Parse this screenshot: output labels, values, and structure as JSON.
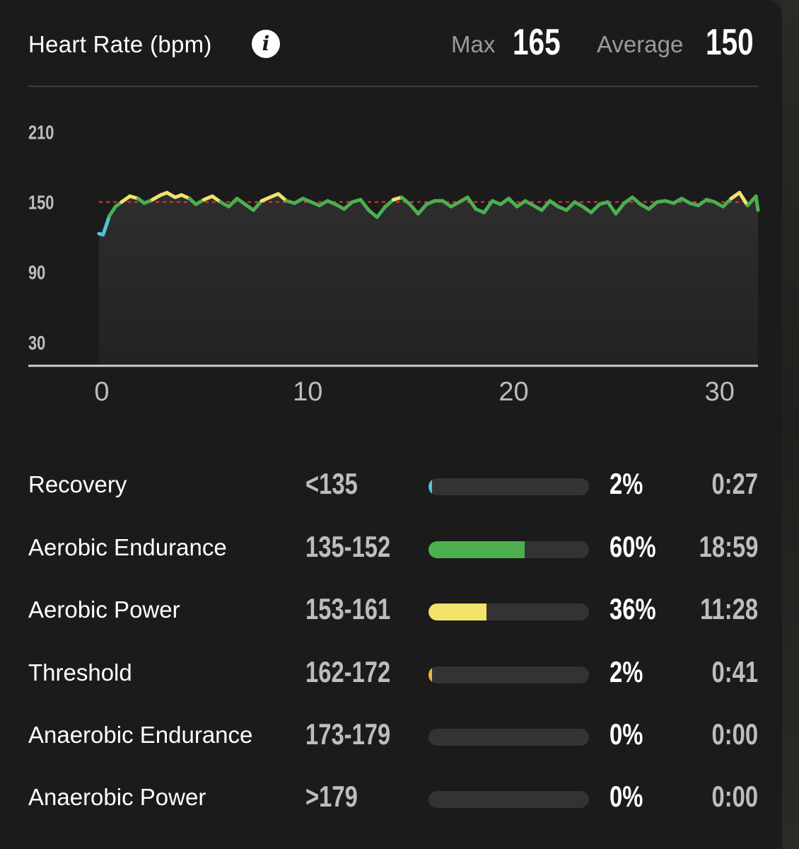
{
  "header": {
    "title": "Heart Rate (bpm)",
    "info_icon": "info-icon",
    "max_label": "Max",
    "max_value": "165",
    "average_label": "Average",
    "average_value": "150"
  },
  "colors": {
    "recovery": "#4fc3d9",
    "aerobic_endurance": "#4caf50",
    "aerobic_power": "#f2e36b",
    "threshold": "#f0b13a",
    "average_line": "#e53935"
  },
  "chart_data": {
    "type": "line",
    "title": "Heart Rate (bpm)",
    "xlabel": "",
    "ylabel": "",
    "xlim": [
      0,
      32
    ],
    "ylim": [
      10,
      235
    ],
    "yticks": [
      30,
      90,
      150,
      210
    ],
    "xticks": [
      0,
      10,
      20,
      30
    ],
    "average": 150,
    "series": [
      {
        "values": [
          [
            0.0,
            123
          ],
          [
            0.2,
            122
          ],
          [
            0.5,
            138
          ],
          [
            0.8,
            146
          ],
          [
            1.1,
            150
          ],
          [
            1.5,
            155
          ],
          [
            1.9,
            153
          ],
          [
            2.2,
            149
          ],
          [
            2.6,
            152
          ],
          [
            3.0,
            156
          ],
          [
            3.3,
            158
          ],
          [
            3.7,
            154
          ],
          [
            4.0,
            156
          ],
          [
            4.4,
            153
          ],
          [
            4.7,
            148
          ],
          [
            5.1,
            152
          ],
          [
            5.5,
            155
          ],
          [
            5.9,
            150
          ],
          [
            6.3,
            146
          ],
          [
            6.7,
            153
          ],
          [
            7.1,
            148
          ],
          [
            7.5,
            143
          ],
          [
            7.9,
            151
          ],
          [
            8.3,
            154
          ],
          [
            8.7,
            157
          ],
          [
            9.1,
            151
          ],
          [
            9.5,
            149
          ],
          [
            9.9,
            153
          ],
          [
            10.3,
            150
          ],
          [
            10.7,
            147
          ],
          [
            11.1,
            151
          ],
          [
            11.5,
            148
          ],
          [
            11.9,
            144
          ],
          [
            12.3,
            150
          ],
          [
            12.7,
            152
          ],
          [
            13.1,
            143
          ],
          [
            13.5,
            137
          ],
          [
            13.9,
            146
          ],
          [
            14.3,
            152
          ],
          [
            14.7,
            154
          ],
          [
            15.1,
            148
          ],
          [
            15.5,
            140
          ],
          [
            15.9,
            148
          ],
          [
            16.3,
            151
          ],
          [
            16.7,
            151
          ],
          [
            17.1,
            146
          ],
          [
            17.5,
            150
          ],
          [
            17.9,
            154
          ],
          [
            18.3,
            144
          ],
          [
            18.7,
            141
          ],
          [
            19.1,
            151
          ],
          [
            19.5,
            148
          ],
          [
            19.9,
            153
          ],
          [
            20.3,
            146
          ],
          [
            20.7,
            151
          ],
          [
            21.1,
            147
          ],
          [
            21.5,
            143
          ],
          [
            21.9,
            151
          ],
          [
            22.3,
            146
          ],
          [
            22.7,
            143
          ],
          [
            23.1,
            150
          ],
          [
            23.5,
            146
          ],
          [
            23.9,
            141
          ],
          [
            24.3,
            148
          ],
          [
            24.7,
            150
          ],
          [
            25.1,
            140
          ],
          [
            25.5,
            149
          ],
          [
            25.9,
            154
          ],
          [
            26.3,
            148
          ],
          [
            26.7,
            144
          ],
          [
            27.1,
            150
          ],
          [
            27.5,
            151
          ],
          [
            27.9,
            149
          ],
          [
            28.3,
            153
          ],
          [
            28.7,
            149
          ],
          [
            29.1,
            147
          ],
          [
            29.5,
            152
          ],
          [
            29.9,
            150
          ],
          [
            30.3,
            146
          ],
          [
            30.7,
            153
          ],
          [
            31.1,
            158
          ],
          [
            31.5,
            147
          ],
          [
            31.9,
            155
          ],
          [
            32.0,
            143
          ]
        ]
      }
    ]
  },
  "zones": [
    {
      "name": "Recovery",
      "range": "<135",
      "percent": "2%",
      "time": "0:27",
      "fraction": 0.02,
      "color": "#4fc3d9"
    },
    {
      "name": "Aerobic Endurance",
      "range": "135-152",
      "percent": "60%",
      "time": "18:59",
      "fraction": 0.6,
      "color": "#4caf50"
    },
    {
      "name": "Aerobic Power",
      "range": "153-161",
      "percent": "36%",
      "time": "11:28",
      "fraction": 0.36,
      "color": "#f2e36b"
    },
    {
      "name": "Threshold",
      "range": "162-172",
      "percent": "2%",
      "time": "0:41",
      "fraction": 0.02,
      "color": "#f0b13a"
    },
    {
      "name": "Anaerobic Endurance",
      "range": "173-179",
      "percent": "0%",
      "time": "0:00",
      "fraction": 0.0,
      "color": "#ef5350"
    },
    {
      "name": "Anaerobic Power",
      "range": ">179",
      "percent": "0%",
      "time": "0:00",
      "fraction": 0.0,
      "color": "#d32f2f"
    }
  ]
}
